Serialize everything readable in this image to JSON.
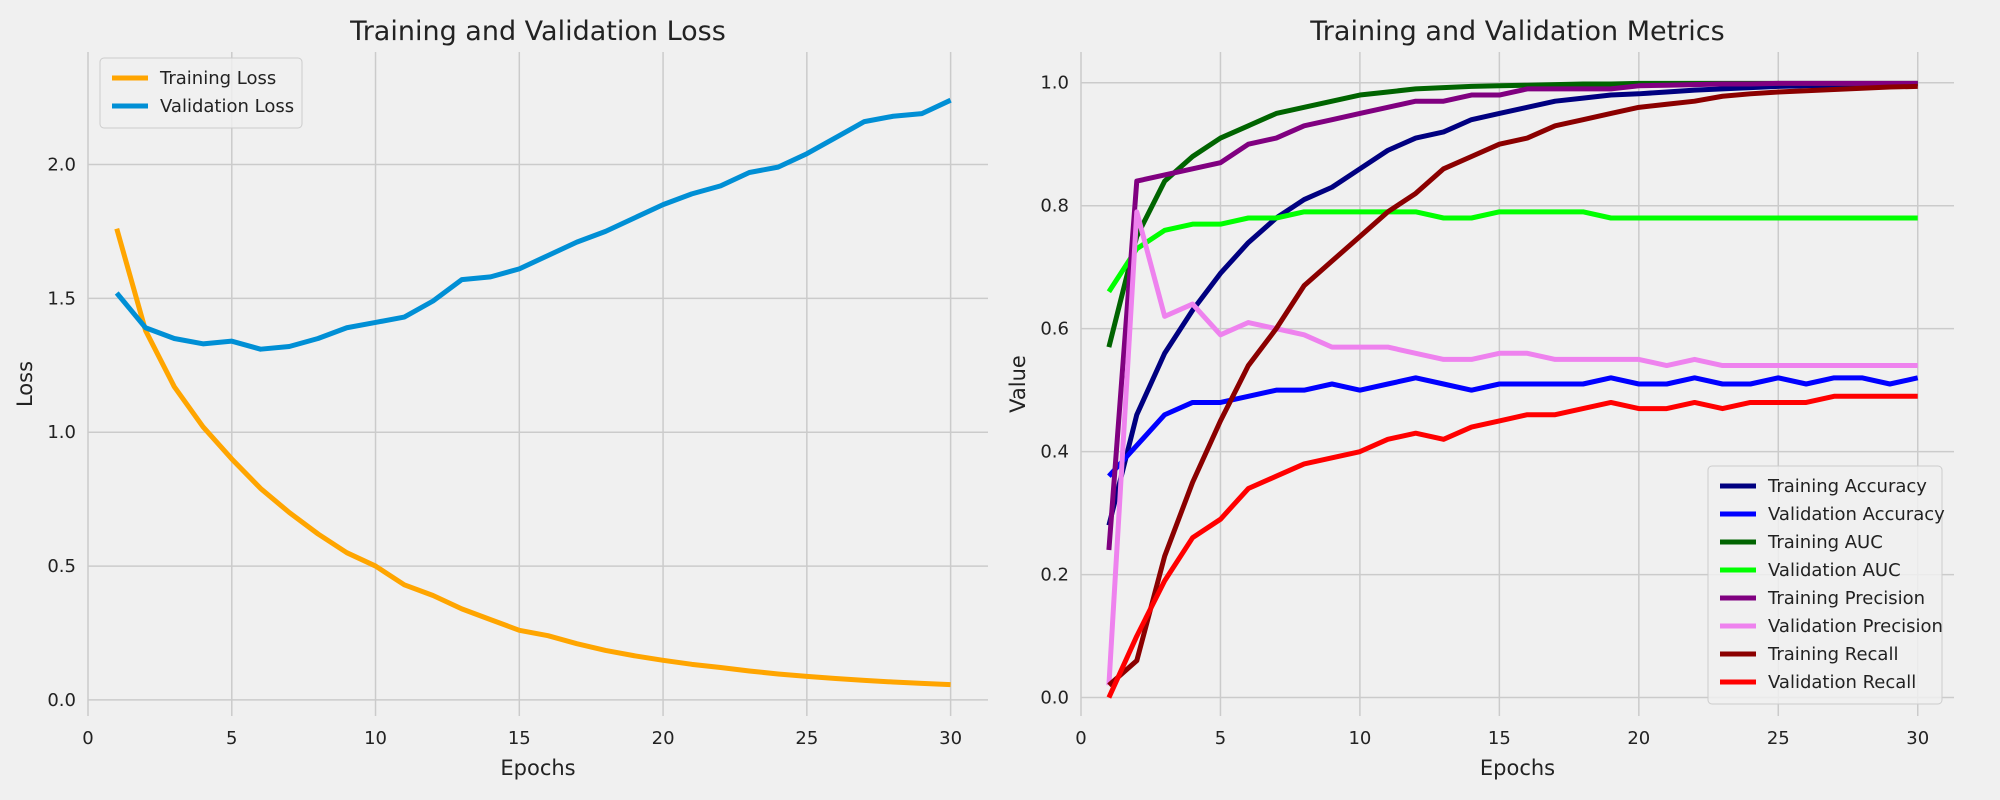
{
  "chart_data": [
    {
      "type": "line",
      "title": "Training and Validation Loss",
      "xlabel": "Epochs",
      "ylabel": "Loss",
      "xlim": [
        0,
        31.3
      ],
      "ylim": [
        -0.06,
        2.42
      ],
      "xticks": [
        0,
        5,
        10,
        15,
        20,
        25,
        30
      ],
      "yticks": [
        0.0,
        0.5,
        1.0,
        1.5,
        2.0
      ],
      "ytick_labels": [
        "0.0",
        "0.5",
        "1.0",
        "1.5",
        "2.0"
      ],
      "grid": true,
      "legend_position": "top-left",
      "x": [
        1,
        2,
        3,
        4,
        5,
        6,
        7,
        8,
        9,
        10,
        11,
        12,
        13,
        14,
        15,
        16,
        17,
        18,
        19,
        20,
        21,
        22,
        23,
        24,
        25,
        26,
        27,
        28,
        29,
        30
      ],
      "series": [
        {
          "name": "Training Loss",
          "color": "#ffa500",
          "values": [
            1.76,
            1.38,
            1.17,
            1.02,
            0.9,
            0.79,
            0.7,
            0.62,
            0.55,
            0.5,
            0.43,
            0.39,
            0.34,
            0.3,
            0.26,
            0.24,
            0.21,
            0.185,
            0.165,
            0.148,
            0.133,
            0.121,
            0.108,
            0.097,
            0.088,
            0.08,
            0.073,
            0.067,
            0.062,
            0.057
          ]
        },
        {
          "name": "Validation Loss",
          "color": "#008fd5",
          "values": [
            1.52,
            1.39,
            1.35,
            1.33,
            1.34,
            1.31,
            1.32,
            1.35,
            1.39,
            1.41,
            1.43,
            1.49,
            1.57,
            1.58,
            1.61,
            1.66,
            1.71,
            1.75,
            1.8,
            1.85,
            1.89,
            1.92,
            1.97,
            1.99,
            2.04,
            2.1,
            2.16,
            2.18,
            2.19,
            2.24
          ]
        }
      ]
    },
    {
      "type": "line",
      "title": "Training and Validation Metrics",
      "xlabel": "Epochs",
      "ylabel": "Value",
      "xlim": [
        0,
        31.3
      ],
      "ylim": [
        -0.03,
        1.05
      ],
      "xticks": [
        0,
        5,
        10,
        15,
        20,
        25,
        30
      ],
      "yticks": [
        0.0,
        0.2,
        0.4,
        0.6,
        0.8,
        1.0
      ],
      "ytick_labels": [
        "0.0",
        "0.2",
        "0.4",
        "0.6",
        "0.8",
        "1.0"
      ],
      "grid": true,
      "legend_position": "bottom-right",
      "x": [
        1,
        2,
        3,
        4,
        5,
        6,
        7,
        8,
        9,
        10,
        11,
        12,
        13,
        14,
        15,
        16,
        17,
        18,
        19,
        20,
        21,
        22,
        23,
        24,
        25,
        26,
        27,
        28,
        29,
        30
      ],
      "series": [
        {
          "name": "Training Accuracy",
          "color": "#000080",
          "values": [
            0.28,
            0.46,
            0.56,
            0.63,
            0.69,
            0.74,
            0.78,
            0.81,
            0.83,
            0.86,
            0.89,
            0.91,
            0.92,
            0.94,
            0.95,
            0.96,
            0.97,
            0.975,
            0.98,
            0.982,
            0.985,
            0.988,
            0.99,
            0.992,
            0.994,
            0.995,
            0.996,
            0.997,
            0.998,
            0.998
          ]
        },
        {
          "name": "Validation Accuracy",
          "color": "#0000ff",
          "values": [
            0.36,
            0.41,
            0.46,
            0.48,
            0.48,
            0.49,
            0.5,
            0.5,
            0.51,
            0.5,
            0.51,
            0.52,
            0.51,
            0.5,
            0.51,
            0.51,
            0.51,
            0.51,
            0.52,
            0.51,
            0.51,
            0.52,
            0.51,
            0.51,
            0.52,
            0.51,
            0.52,
            0.52,
            0.51,
            0.52
          ]
        },
        {
          "name": "Training AUC",
          "color": "#006400",
          "values": [
            0.57,
            0.75,
            0.84,
            0.88,
            0.91,
            0.93,
            0.95,
            0.96,
            0.97,
            0.98,
            0.985,
            0.99,
            0.992,
            0.994,
            0.995,
            0.996,
            0.997,
            0.998,
            0.998,
            0.999,
            0.999,
            0.999,
            0.999,
            0.999,
            0.999,
            0.999,
            0.999,
            0.999,
            0.999,
            0.999
          ]
        },
        {
          "name": "Validation AUC",
          "color": "#00ff00",
          "values": [
            0.66,
            0.73,
            0.76,
            0.77,
            0.77,
            0.78,
            0.78,
            0.79,
            0.79,
            0.79,
            0.79,
            0.79,
            0.78,
            0.78,
            0.79,
            0.79,
            0.79,
            0.79,
            0.78,
            0.78,
            0.78,
            0.78,
            0.78,
            0.78,
            0.78,
            0.78,
            0.78,
            0.78,
            0.78,
            0.78
          ]
        },
        {
          "name": "Training Precision",
          "color": "#800080",
          "values": [
            0.24,
            0.84,
            0.85,
            0.86,
            0.87,
            0.9,
            0.91,
            0.93,
            0.94,
            0.95,
            0.96,
            0.97,
            0.97,
            0.98,
            0.98,
            0.99,
            0.99,
            0.99,
            0.99,
            0.995,
            0.996,
            0.997,
            0.998,
            0.998,
            0.999,
            0.999,
            0.999,
            0.999,
            0.999,
            0.999
          ]
        },
        {
          "name": "Validation Precision",
          "color": "#ee82ee",
          "values": [
            0.02,
            0.79,
            0.62,
            0.64,
            0.59,
            0.61,
            0.6,
            0.59,
            0.57,
            0.57,
            0.57,
            0.56,
            0.55,
            0.55,
            0.56,
            0.56,
            0.55,
            0.55,
            0.55,
            0.55,
            0.54,
            0.55,
            0.54,
            0.54,
            0.54,
            0.54,
            0.54,
            0.54,
            0.54,
            0.54
          ]
        },
        {
          "name": "Training Recall",
          "color": "#8b0000",
          "values": [
            0.02,
            0.06,
            0.23,
            0.35,
            0.45,
            0.54,
            0.6,
            0.67,
            0.71,
            0.75,
            0.79,
            0.82,
            0.86,
            0.88,
            0.9,
            0.91,
            0.93,
            0.94,
            0.95,
            0.96,
            0.965,
            0.97,
            0.978,
            0.982,
            0.985,
            0.987,
            0.989,
            0.991,
            0.993,
            0.994
          ]
        },
        {
          "name": "Validation Recall",
          "color": "#ff0000",
          "values": [
            0.0,
            0.1,
            0.19,
            0.26,
            0.29,
            0.34,
            0.36,
            0.38,
            0.39,
            0.4,
            0.42,
            0.43,
            0.42,
            0.44,
            0.45,
            0.46,
            0.46,
            0.47,
            0.48,
            0.47,
            0.47,
            0.48,
            0.47,
            0.48,
            0.48,
            0.48,
            0.49,
            0.49,
            0.49,
            0.49
          ]
        }
      ]
    }
  ]
}
